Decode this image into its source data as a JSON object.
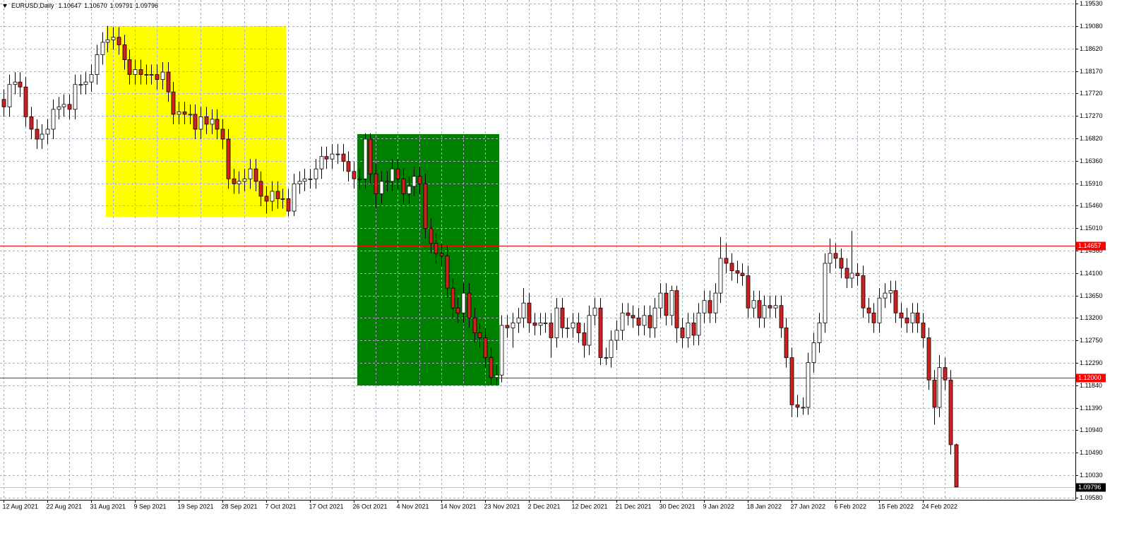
{
  "chart_data": {
    "type": "candlestick",
    "title": "EURUSD,Daily",
    "last_bar_labels": [
      "1.10647",
      "1.10670",
      "1.09791",
      "1.09796"
    ],
    "categories": [
      "12 Aug 2021",
      null,
      null,
      null,
      null,
      null,
      null,
      null,
      "22 Aug 2021",
      null,
      null,
      null,
      null,
      null,
      null,
      null,
      "31 Aug 2021",
      null,
      null,
      null,
      null,
      null,
      null,
      null,
      "9 Sep 2021",
      null,
      null,
      null,
      null,
      null,
      null,
      null,
      "19 Sep 2021",
      null,
      null,
      null,
      null,
      null,
      null,
      null,
      "28 Sep 2021",
      null,
      null,
      null,
      null,
      null,
      null,
      null,
      "7 Oct 2021",
      null,
      null,
      null,
      null,
      null,
      null,
      null,
      "17 Oct 2021",
      null,
      null,
      null,
      null,
      null,
      null,
      null,
      "26 Oct 2021",
      null,
      null,
      null,
      null,
      null,
      null,
      null,
      "4 Nov 2021",
      null,
      null,
      null,
      null,
      null,
      null,
      null,
      "14 Nov 2021",
      null,
      null,
      null,
      null,
      null,
      null,
      null,
      "23 Nov 2021",
      null,
      null,
      null,
      null,
      null,
      null,
      null,
      "2 Dec 2021",
      null,
      null,
      null,
      null,
      null,
      null,
      null,
      "12 Dec 2021",
      null,
      null,
      null,
      null,
      null,
      null,
      null,
      "21 Dec 2021",
      null,
      null,
      null,
      null,
      null,
      null,
      null,
      "30 Dec 2021",
      null,
      null,
      null,
      null,
      null,
      null,
      null,
      "9 Jan 2022",
      null,
      null,
      null,
      null,
      null,
      null,
      null,
      "18 Jan 2022",
      null,
      null,
      null,
      null,
      null,
      null,
      null,
      "27 Jan 2022",
      null,
      null,
      null,
      null,
      null,
      null,
      null,
      "6 Feb 2022",
      null,
      null,
      null,
      null,
      null,
      null,
      null,
      "15 Feb 2022",
      null,
      null,
      null,
      null,
      null,
      null,
      null,
      "24 Feb 2022",
      null,
      null,
      null,
      null,
      null,
      null
    ],
    "open": [
      1.176,
      1.1745,
      1.179,
      1.1795,
      1.1785,
      1.1725,
      1.17,
      1.168,
      1.169,
      1.17,
      1.174,
      1.1745,
      1.175,
      1.174,
      1.179,
      1.179,
      1.1795,
      1.181,
      1.185,
      1.1875,
      1.188,
      1.1885,
      1.187,
      1.184,
      1.181,
      1.182,
      1.181,
      1.181,
      1.181,
      1.18,
      1.1815,
      1.1775,
      1.173,
      1.1735,
      1.173,
      1.173,
      1.17,
      1.1725,
      1.171,
      1.172,
      1.17,
      1.168,
      1.16,
      1.159,
      1.1595,
      1.16,
      1.162,
      1.1595,
      1.1565,
      1.1555,
      1.1575,
      1.156,
      1.156,
      1.1535,
      1.159,
      1.1595,
      1.16,
      1.16,
      1.162,
      1.1645,
      1.164,
      1.165,
      1.165,
      1.1635,
      1.1615,
      1.16,
      1.16,
      1.168,
      1.161,
      1.157,
      1.1595,
      1.1595,
      1.162,
      1.16,
      1.157,
      1.1585,
      1.1605,
      1.159,
      1.15,
      1.147,
      1.145,
      1.1445,
      1.138,
      1.134,
      1.133,
      1.137,
      1.132,
      1.129,
      1.128,
      1.124,
      1.12,
      1.1205,
      1.1305,
      1.13,
      1.131,
      1.132,
      1.135,
      1.131,
      1.1305,
      1.131,
      1.131,
      1.128,
      1.134,
      1.13,
      1.13,
      1.131,
      1.129,
      1.1265,
      1.1325,
      1.134,
      1.124,
      1.124,
      1.1275,
      1.1295,
      1.133,
      1.1325,
      1.132,
      1.1305,
      1.1325,
      1.13,
      1.134,
      1.137,
      1.1325,
      1.1375,
      1.13,
      1.128,
      1.131,
      1.1285,
      1.133,
      1.1355,
      1.133,
      1.137,
      1.144,
      1.143,
      1.1415,
      1.141,
      1.1405,
      1.134,
      1.1355,
      1.132,
      1.1345,
      1.134,
      1.1345,
      1.13,
      1.124,
      1.1145,
      1.114,
      1.114,
      1.123,
      1.127,
      1.131,
      1.143,
      1.145,
      1.144,
      1.142,
      1.14,
      1.141,
      1.1405,
      1.134,
      1.133,
      1.131,
      1.136,
      1.137,
      1.1375,
      1.133,
      1.132,
      1.131,
      1.133,
      1.131,
      1.128,
      1.1195,
      1.114,
      1.122,
      1.1195,
      1.10647
    ],
    "high": [
      1.178,
      1.181,
      1.1815,
      1.1815,
      1.1805,
      1.1745,
      1.172,
      1.171,
      1.172,
      1.176,
      1.1765,
      1.177,
      1.177,
      1.181,
      1.181,
      1.1815,
      1.183,
      1.187,
      1.1895,
      1.1908,
      1.1905,
      1.1905,
      1.189,
      1.186,
      1.184,
      1.184,
      1.183,
      1.183,
      1.183,
      1.1835,
      1.1835,
      1.1795,
      1.1755,
      1.1755,
      1.175,
      1.175,
      1.1745,
      1.1745,
      1.174,
      1.174,
      1.172,
      1.17,
      1.162,
      1.1615,
      1.162,
      1.164,
      1.164,
      1.1615,
      1.1585,
      1.1595,
      1.1595,
      1.158,
      1.158,
      1.161,
      1.1615,
      1.162,
      1.162,
      1.164,
      1.1665,
      1.1665,
      1.167,
      1.167,
      1.167,
      1.1655,
      1.1635,
      1.162,
      1.1692,
      1.1692,
      1.163,
      1.1615,
      1.1615,
      1.164,
      1.164,
      1.162,
      1.1605,
      1.1625,
      1.1625,
      1.161,
      1.152,
      1.149,
      1.147,
      1.1465,
      1.14,
      1.136,
      1.139,
      1.139,
      1.134,
      1.131,
      1.13,
      1.126,
      1.1225,
      1.1325,
      1.1325,
      1.133,
      1.134,
      1.138,
      1.137,
      1.133,
      1.133,
      1.133,
      1.133,
      1.136,
      1.136,
      1.132,
      1.133,
      1.133,
      1.131,
      1.1345,
      1.136,
      1.136,
      1.126,
      1.1295,
      1.1315,
      1.135,
      1.135,
      1.1345,
      1.134,
      1.1345,
      1.1345,
      1.136,
      1.139,
      1.139,
      1.1385,
      1.1385,
      1.132,
      1.133,
      1.133,
      1.135,
      1.1375,
      1.1375,
      1.139,
      1.1483,
      1.147,
      1.145,
      1.1435,
      1.143,
      1.1425,
      1.1375,
      1.1375,
      1.1365,
      1.1365,
      1.1365,
      1.1365,
      1.132,
      1.126,
      1.1165,
      1.116,
      1.125,
      1.129,
      1.133,
      1.145,
      1.148,
      1.147,
      1.146,
      1.144,
      1.1495,
      1.143,
      1.1425,
      1.136,
      1.135,
      1.138,
      1.139,
      1.1395,
      1.1395,
      1.135,
      1.134,
      1.135,
      1.135,
      1.133,
      1.13,
      1.1215,
      1.1245,
      1.124,
      1.1215,
      1.1067
    ],
    "low": [
      1.1725,
      1.1725,
      1.177,
      1.1765,
      1.1705,
      1.168,
      1.166,
      1.166,
      1.167,
      1.168,
      1.172,
      1.1725,
      1.172,
      1.172,
      1.177,
      1.177,
      1.1775,
      1.179,
      1.183,
      1.1855,
      1.186,
      1.185,
      1.182,
      1.179,
      1.179,
      1.179,
      1.179,
      1.179,
      1.178,
      1.178,
      1.1755,
      1.171,
      1.171,
      1.171,
      1.171,
      1.168,
      1.168,
      1.169,
      1.169,
      1.168,
      1.166,
      1.158,
      1.157,
      1.157,
      1.1575,
      1.158,
      1.1575,
      1.1545,
      1.153,
      1.1535,
      1.154,
      1.154,
      1.1525,
      1.1525,
      1.157,
      1.1575,
      1.158,
      1.158,
      1.16,
      1.162,
      1.162,
      1.163,
      1.1615,
      1.1595,
      1.158,
      1.158,
      1.158,
      1.159,
      1.154,
      1.155,
      1.1575,
      1.1575,
      1.158,
      1.155,
      1.155,
      1.1565,
      1.157,
      1.148,
      1.145,
      1.143,
      1.1425,
      1.136,
      1.132,
      1.131,
      1.131,
      1.13,
      1.127,
      1.126,
      1.122,
      1.1186,
      1.1186,
      1.119,
      1.128,
      1.126,
      1.129,
      1.13,
      1.129,
      1.1285,
      1.1285,
      1.129,
      1.124,
      1.126,
      1.128,
      1.128,
      1.128,
      1.127,
      1.124,
      1.1245,
      1.1305,
      1.1225,
      1.1225,
      1.122,
      1.1255,
      1.1275,
      1.1305,
      1.13,
      1.1285,
      1.1285,
      1.128,
      1.128,
      1.132,
      1.1305,
      1.1305,
      1.127,
      1.126,
      1.126,
      1.1265,
      1.1265,
      1.131,
      1.131,
      1.131,
      1.135,
      1.141,
      1.1395,
      1.139,
      1.1385,
      1.132,
      1.132,
      1.13,
      1.13,
      1.132,
      1.132,
      1.128,
      1.122,
      1.112,
      1.112,
      1.1125,
      1.1125,
      1.121,
      1.125,
      1.129,
      1.141,
      1.142,
      1.14,
      1.138,
      1.138,
      1.1385,
      1.132,
      1.131,
      1.129,
      1.129,
      1.134,
      1.135,
      1.131,
      1.13,
      1.129,
      1.129,
      1.129,
      1.126,
      1.1175,
      1.1105,
      1.112,
      1.1175,
      1.1045,
      1.09791
    ],
    "close": [
      1.1745,
      1.179,
      1.1795,
      1.1785,
      1.1725,
      1.17,
      1.168,
      1.169,
      1.17,
      1.174,
      1.1745,
      1.175,
      1.174,
      1.179,
      1.179,
      1.1795,
      1.181,
      1.185,
      1.1875,
      1.188,
      1.1885,
      1.187,
      1.184,
      1.181,
      1.182,
      1.181,
      1.181,
      1.181,
      1.18,
      1.1815,
      1.1775,
      1.173,
      1.1735,
      1.173,
      1.173,
      1.17,
      1.1725,
      1.171,
      1.172,
      1.17,
      1.168,
      1.16,
      1.159,
      1.1595,
      1.16,
      1.162,
      1.1595,
      1.1565,
      1.1555,
      1.1575,
      1.156,
      1.156,
      1.1535,
      1.159,
      1.1595,
      1.16,
      1.16,
      1.162,
      1.1645,
      1.164,
      1.165,
      1.165,
      1.1635,
      1.1615,
      1.16,
      1.16,
      1.168,
      1.161,
      1.157,
      1.1595,
      1.1595,
      1.162,
      1.16,
      1.157,
      1.1585,
      1.1605,
      1.159,
      1.15,
      1.147,
      1.145,
      1.1445,
      1.138,
      1.134,
      1.133,
      1.137,
      1.132,
      1.129,
      1.128,
      1.124,
      1.12,
      1.1205,
      1.1305,
      1.13,
      1.131,
      1.132,
      1.135,
      1.131,
      1.1305,
      1.131,
      1.131,
      1.128,
      1.134,
      1.13,
      1.13,
      1.131,
      1.129,
      1.1265,
      1.1325,
      1.134,
      1.124,
      1.124,
      1.1275,
      1.1295,
      1.133,
      1.1325,
      1.132,
      1.1305,
      1.1325,
      1.13,
      1.134,
      1.137,
      1.1325,
      1.1375,
      1.13,
      1.128,
      1.131,
      1.1285,
      1.133,
      1.1355,
      1.133,
      1.137,
      1.144,
      1.143,
      1.1415,
      1.141,
      1.1405,
      1.134,
      1.1355,
      1.132,
      1.1345,
      1.134,
      1.1345,
      1.13,
      1.124,
      1.1145,
      1.114,
      1.114,
      1.123,
      1.127,
      1.131,
      1.143,
      1.145,
      1.144,
      1.142,
      1.14,
      1.141,
      1.1405,
      1.134,
      1.133,
      1.131,
      1.136,
      1.137,
      1.1375,
      1.133,
      1.132,
      1.131,
      1.133,
      1.131,
      1.128,
      1.1195,
      1.114,
      1.122,
      1.1195,
      1.10647,
      1.09796
    ],
    "up_color": "#ffffff",
    "down_color": "#d21f1f",
    "wick_color": "#000000",
    "ylim": [
      1.0958,
      1.1953
    ],
    "yticks": [
      {
        "value": 1.1953,
        "label": "1.19530"
      },
      {
        "value": 1.1908,
        "label": "1.19080"
      },
      {
        "value": 1.1862,
        "label": "1.18620"
      },
      {
        "value": 1.1817,
        "label": "1.18170"
      },
      {
        "value": 1.1772,
        "label": "1.17720"
      },
      {
        "value": 1.1727,
        "label": "1.17270"
      },
      {
        "value": 1.1682,
        "label": "1.16820"
      },
      {
        "value": 1.1636,
        "label": "1.16360"
      },
      {
        "value": 1.1591,
        "label": "1.15910"
      },
      {
        "value": 1.1546,
        "label": "1.15460"
      },
      {
        "value": 1.1501,
        "label": "1.15010"
      },
      {
        "value": 1.1456,
        "label": "1.14560"
      },
      {
        "value": 1.141,
        "label": "1.14100"
      },
      {
        "value": 1.1365,
        "label": "1.13650"
      },
      {
        "value": 1.132,
        "label": "1.13200"
      },
      {
        "value": 1.1275,
        "label": "1.12750"
      },
      {
        "value": 1.1229,
        "label": "1.12290"
      },
      {
        "value": 1.1184,
        "label": "1.11840"
      },
      {
        "value": 1.1139,
        "label": "1.11390"
      },
      {
        "value": 1.1094,
        "label": "1.10940"
      },
      {
        "value": 1.1049,
        "label": "1.10490"
      },
      {
        "value": 1.1003,
        "label": "1.10030"
      },
      {
        "value": 1.0958,
        "label": "1.09580"
      }
    ],
    "hlines": [
      {
        "value": 1.14657,
        "color": "#ff0000"
      },
      {
        "value": 1.12,
        "label": "1.12000",
        "color": "#ff0000"
      }
    ],
    "grid": true
  }
}
